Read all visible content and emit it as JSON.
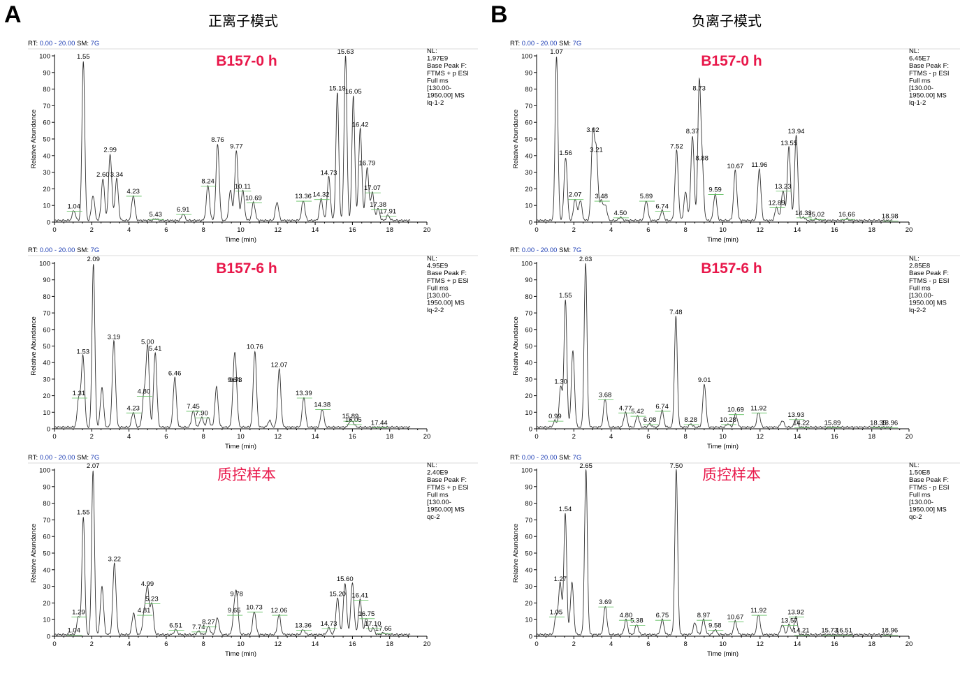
{
  "panels": [
    {
      "letter": "A",
      "mode": "正离子模式"
    },
    {
      "letter": "B",
      "mode": "负离子模式"
    }
  ],
  "axes": {
    "xlabel": "Time (min)",
    "ylabel": "Relative Abundance",
    "x_ticks": [
      0,
      2,
      4,
      6,
      8,
      10,
      12,
      14,
      16,
      18,
      20
    ],
    "y_ticks": [
      0,
      10,
      20,
      30,
      40,
      50,
      60,
      70,
      80,
      90,
      100
    ]
  },
  "colors": {
    "trace": "#333333",
    "sample_title": "#e8174a",
    "rt_value": "#1f3fb5",
    "baseline_mark": "#5fbf5f"
  },
  "chart_data": [
    {
      "type": "line",
      "panel": "A",
      "row": 0,
      "title": "B157-0 h",
      "header": {
        "rt_prefix": "RT:",
        "rt_range": "0.00 - 20.00",
        "sm_prefix": "SM:",
        "sm_value": "7G"
      },
      "info": [
        "NL:",
        "1.97E9",
        "Base Peak F:",
        "FTMS + p ESI",
        "Full ms",
        "[130.00-",
        "1950.00]  MS",
        "lq-1-2"
      ],
      "xlabel": "Time (min)",
      "ylabel": "Relative Abundance",
      "xlim": [
        0,
        20
      ],
      "ylim": [
        0,
        100
      ],
      "baseline": 1,
      "peaks": [
        {
          "x": 1.04,
          "y": 7,
          "label": "1.04"
        },
        {
          "x": 1.55,
          "y": 97,
          "label": "1.55"
        },
        {
          "x": 2.07,
          "y": 16
        },
        {
          "x": 2.6,
          "y": 26,
          "label": "2.60"
        },
        {
          "x": 2.99,
          "y": 41,
          "label": "2.99"
        },
        {
          "x": 3.34,
          "y": 26,
          "label": "3.34"
        },
        {
          "x": 4.23,
          "y": 16,
          "label": "4.23"
        },
        {
          "x": 5.43,
          "y": 2,
          "label": "5.43"
        },
        {
          "x": 6.91,
          "y": 5,
          "label": "6.91"
        },
        {
          "x": 8.24,
          "y": 22,
          "label": "8.24"
        },
        {
          "x": 8.76,
          "y": 47,
          "label": "8.76"
        },
        {
          "x": 9.45,
          "y": 19
        },
        {
          "x": 9.77,
          "y": 43,
          "label": "9.77"
        },
        {
          "x": 10.11,
          "y": 19,
          "label": "10.11"
        },
        {
          "x": 10.69,
          "y": 12,
          "label": "10.69"
        },
        {
          "x": 11.95,
          "y": 12
        },
        {
          "x": 13.36,
          "y": 13,
          "label": "13.36"
        },
        {
          "x": 14.32,
          "y": 14,
          "label": "14.32"
        },
        {
          "x": 14.73,
          "y": 27,
          "label": "14.73"
        },
        {
          "x": 15.19,
          "y": 78,
          "label": "15.19"
        },
        {
          "x": 15.63,
          "y": 100,
          "label": "15.63"
        },
        {
          "x": 16.05,
          "y": 76,
          "label": "16.05"
        },
        {
          "x": 16.42,
          "y": 56,
          "label": "16.42"
        },
        {
          "x": 16.79,
          "y": 33,
          "label": "16.79"
        },
        {
          "x": 17.07,
          "y": 18,
          "label": "17.07"
        },
        {
          "x": 17.38,
          "y": 8,
          "label": "17.38"
        },
        {
          "x": 17.91,
          "y": 4,
          "label": "17.91"
        }
      ]
    },
    {
      "type": "line",
      "panel": "A",
      "row": 1,
      "title": "B157-6 h",
      "header": {
        "rt_prefix": "RT:",
        "rt_range": "0.00 - 20.00",
        "sm_prefix": "SM:",
        "sm_value": "7G"
      },
      "info": [
        "NL:",
        "4.95E9",
        "Base Peak F:",
        "FTMS + p ESI",
        "Full ms",
        "[130.00-",
        "1950.00]  MS",
        "lq-2-2"
      ],
      "xlabel": "Time (min)",
      "ylabel": "Relative Abundance",
      "xlim": [
        0,
        20
      ],
      "ylim": [
        0,
        100
      ],
      "baseline": 1,
      "peaks": [
        {
          "x": 1.31,
          "y": 19,
          "label": "1.31"
        },
        {
          "x": 1.53,
          "y": 44,
          "label": "1.53"
        },
        {
          "x": 2.09,
          "y": 100,
          "label": "2.09"
        },
        {
          "x": 2.55,
          "y": 25
        },
        {
          "x": 3.19,
          "y": 53,
          "label": "3.19"
        },
        {
          "x": 4.23,
          "y": 10,
          "label": "4.23"
        },
        {
          "x": 4.8,
          "y": 20,
          "label": "4.80"
        },
        {
          "x": 5.0,
          "y": 50,
          "label": "5.00"
        },
        {
          "x": 5.41,
          "y": 46,
          "label": "5.41"
        },
        {
          "x": 6.46,
          "y": 31,
          "label": "6.46"
        },
        {
          "x": 7.45,
          "y": 11,
          "label": "7.45"
        },
        {
          "x": 7.9,
          "y": 7,
          "label": "7.90"
        },
        {
          "x": 8.25,
          "y": 7
        },
        {
          "x": 8.7,
          "y": 25
        },
        {
          "x": 9.64,
          "y": 27,
          "label": "9.64"
        },
        {
          "x": 9.73,
          "y": 27,
          "label": "9.73"
        },
        {
          "x": 10.76,
          "y": 47,
          "label": "10.76"
        },
        {
          "x": 11.55,
          "y": 5
        },
        {
          "x": 12.07,
          "y": 36,
          "label": "12.07"
        },
        {
          "x": 13.39,
          "y": 19,
          "label": "13.39"
        },
        {
          "x": 14.38,
          "y": 12,
          "label": "14.38"
        },
        {
          "x": 15.89,
          "y": 5,
          "label": "15.89"
        },
        {
          "x": 16.05,
          "y": 3,
          "label": "16.05"
        },
        {
          "x": 17.44,
          "y": 1,
          "label": "17.44"
        }
      ]
    },
    {
      "type": "line",
      "panel": "A",
      "row": 2,
      "title": "质控样本",
      "header": {
        "rt_prefix": "RT:",
        "rt_range": "0.00 - 20.00",
        "sm_prefix": "SM:",
        "sm_value": "7G"
      },
      "info": [
        "NL:",
        "2.40E9",
        "Base Peak F:",
        "FTMS + p ESI",
        "Full ms",
        "[130.00-",
        "1950.00]  MS",
        "qc-2"
      ],
      "xlabel": "Time (min)",
      "ylabel": "Relative Abundance",
      "xlim": [
        0,
        20
      ],
      "ylim": [
        0,
        100
      ],
      "baseline": 1,
      "peaks": [
        {
          "x": 1.04,
          "y": 1,
          "label": "1.04"
        },
        {
          "x": 1.29,
          "y": 12,
          "label": "1.29"
        },
        {
          "x": 1.55,
          "y": 72,
          "label": "1.55"
        },
        {
          "x": 2.07,
          "y": 100,
          "label": "2.07"
        },
        {
          "x": 2.55,
          "y": 30
        },
        {
          "x": 3.22,
          "y": 44,
          "label": "3.22"
        },
        {
          "x": 4.25,
          "y": 14
        },
        {
          "x": 4.81,
          "y": 13,
          "label": "4.81"
        },
        {
          "x": 4.99,
          "y": 29,
          "label": "4.99"
        },
        {
          "x": 5.23,
          "y": 20,
          "label": "5.23"
        },
        {
          "x": 6.51,
          "y": 4,
          "label": "6.51"
        },
        {
          "x": 7.74,
          "y": 3,
          "label": "7.74"
        },
        {
          "x": 8.27,
          "y": 6,
          "label": "8.27"
        },
        {
          "x": 8.75,
          "y": 11
        },
        {
          "x": 9.65,
          "y": 13,
          "label": "9.65"
        },
        {
          "x": 9.78,
          "y": 23,
          "label": "9.78"
        },
        {
          "x": 10.73,
          "y": 15,
          "label": "10.73"
        },
        {
          "x": 12.06,
          "y": 13,
          "label": "12.06"
        },
        {
          "x": 13.36,
          "y": 4,
          "label": "13.36"
        },
        {
          "x": 14.73,
          "y": 5,
          "label": "14.73"
        },
        {
          "x": 15.2,
          "y": 23,
          "label": "15.20"
        },
        {
          "x": 15.6,
          "y": 32,
          "label": "15.60"
        },
        {
          "x": 16.0,
          "y": 32
        },
        {
          "x": 16.41,
          "y": 22,
          "label": "16.41"
        },
        {
          "x": 16.75,
          "y": 11,
          "label": "16.75"
        },
        {
          "x": 17.1,
          "y": 5,
          "label": "17.10"
        },
        {
          "x": 17.66,
          "y": 2,
          "label": "17.66"
        }
      ]
    },
    {
      "type": "line",
      "panel": "B",
      "row": 0,
      "title": "B157-0 h",
      "header": {
        "rt_prefix": "RT:",
        "rt_range": "0.00 - 20.00",
        "sm_prefix": "SM:",
        "sm_value": "7G"
      },
      "info": [
        "NL:",
        "6.45E7",
        "Base Peak F:",
        "FTMS - p ESI",
        "Full ms",
        "[130.00-",
        "1950.00]  MS",
        "lq-1-2"
      ],
      "xlabel": "Time (min)",
      "ylabel": "Relative Abundance",
      "xlim": [
        0,
        20
      ],
      "ylim": [
        0,
        100
      ],
      "baseline": 1,
      "peaks": [
        {
          "x": 1.07,
          "y": 100,
          "label": "1.07"
        },
        {
          "x": 1.56,
          "y": 39,
          "label": "1.56"
        },
        {
          "x": 2.07,
          "y": 14,
          "label": "2.07"
        },
        {
          "x": 2.35,
          "y": 13
        },
        {
          "x": 3.02,
          "y": 53,
          "label": "3.02"
        },
        {
          "x": 3.21,
          "y": 41,
          "label": "3.21"
        },
        {
          "x": 3.48,
          "y": 13,
          "label": "3.48"
        },
        {
          "x": 3.7,
          "y": 10
        },
        {
          "x": 4.5,
          "y": 3,
          "label": "4.50"
        },
        {
          "x": 5.89,
          "y": 13,
          "label": "5.89"
        },
        {
          "x": 6.74,
          "y": 7,
          "label": "6.74"
        },
        {
          "x": 7.52,
          "y": 43,
          "label": "7.52"
        },
        {
          "x": 8.0,
          "y": 18
        },
        {
          "x": 8.37,
          "y": 52,
          "label": "8.37"
        },
        {
          "x": 8.73,
          "y": 78,
          "label": "8.73"
        },
        {
          "x": 8.88,
          "y": 36,
          "label": "8.88"
        },
        {
          "x": 9.59,
          "y": 17,
          "label": "9.59"
        },
        {
          "x": 10.67,
          "y": 31,
          "label": "10.67"
        },
        {
          "x": 11.96,
          "y": 32,
          "label": "11.96"
        },
        {
          "x": 12.89,
          "y": 9,
          "label": "12.89"
        },
        {
          "x": 13.23,
          "y": 19,
          "label": "13.23"
        },
        {
          "x": 13.55,
          "y": 45,
          "label": "13.55"
        },
        {
          "x": 13.94,
          "y": 52,
          "label": "13.94"
        },
        {
          "x": 14.33,
          "y": 3,
          "label": "14.33"
        },
        {
          "x": 15.02,
          "y": 2,
          "label": "15.02"
        },
        {
          "x": 16.66,
          "y": 2,
          "label": "16.66"
        },
        {
          "x": 18.98,
          "y": 1,
          "label": "18.98"
        }
      ]
    },
    {
      "type": "line",
      "panel": "B",
      "row": 1,
      "title": "B157-6 h",
      "header": {
        "rt_prefix": "RT:",
        "rt_range": "0.00 - 20.00",
        "sm_prefix": "SM:",
        "sm_value": "7G"
      },
      "info": [
        "NL:",
        "2.85E8",
        "Base Peak F:",
        "FTMS - p ESI",
        "Full ms",
        "[130.00-",
        "1950.00]  MS",
        "lq-2-2"
      ],
      "xlabel": "Time (min)",
      "ylabel": "Relative Abundance",
      "xlim": [
        0,
        20
      ],
      "ylim": [
        0,
        100
      ],
      "baseline": 1,
      "peaks": [
        {
          "x": 0.99,
          "y": 5,
          "label": "0.99"
        },
        {
          "x": 1.3,
          "y": 26,
          "label": "1.30"
        },
        {
          "x": 1.55,
          "y": 78,
          "label": "1.55"
        },
        {
          "x": 1.95,
          "y": 47
        },
        {
          "x": 2.63,
          "y": 100,
          "label": "2.63"
        },
        {
          "x": 3.68,
          "y": 18,
          "label": "3.68"
        },
        {
          "x": 4.77,
          "y": 10,
          "label": "4.77"
        },
        {
          "x": 5.42,
          "y": 8,
          "label": "5.42"
        },
        {
          "x": 6.08,
          "y": 3,
          "label": "6.08"
        },
        {
          "x": 6.74,
          "y": 11,
          "label": "6.74"
        },
        {
          "x": 7.48,
          "y": 68,
          "label": "7.48"
        },
        {
          "x": 8.28,
          "y": 3,
          "label": "8.28"
        },
        {
          "x": 9.01,
          "y": 27,
          "label": "9.01"
        },
        {
          "x": 10.28,
          "y": 3,
          "label": "10.28"
        },
        {
          "x": 10.69,
          "y": 9,
          "label": "10.69"
        },
        {
          "x": 11.92,
          "y": 10,
          "label": "11.92"
        },
        {
          "x": 13.2,
          "y": 5
        },
        {
          "x": 13.93,
          "y": 6,
          "label": "13.93"
        },
        {
          "x": 14.22,
          "y": 1,
          "label": "14.22"
        },
        {
          "x": 15.89,
          "y": 1,
          "label": "15.89"
        },
        {
          "x": 18.35,
          "y": 1,
          "label": "18.35"
        },
        {
          "x": 18.96,
          "y": 1,
          "label": "18.96"
        }
      ]
    },
    {
      "type": "line",
      "panel": "B",
      "row": 2,
      "title": "质控样本",
      "header": {
        "rt_prefix": "RT:",
        "rt_range": "0.00 - 20.00",
        "sm_prefix": "SM:",
        "sm_value": "7G"
      },
      "info": [
        "NL:",
        "1.50E8",
        "Base Peak F:",
        "FTMS - p ESI",
        "Full ms",
        "[130.00-",
        "1950.00]  MS",
        "qc-2"
      ],
      "xlabel": "Time (min)",
      "ylabel": "Relative Abundance",
      "xlim": [
        0,
        20
      ],
      "ylim": [
        0,
        100
      ],
      "baseline": 1,
      "peaks": [
        {
          "x": 1.05,
          "y": 12,
          "label": "1.05"
        },
        {
          "x": 1.27,
          "y": 32,
          "label": "1.27"
        },
        {
          "x": 1.54,
          "y": 74,
          "label": "1.54"
        },
        {
          "x": 1.9,
          "y": 32
        },
        {
          "x": 2.65,
          "y": 100,
          "label": "2.65"
        },
        {
          "x": 3.69,
          "y": 18,
          "label": "3.69"
        },
        {
          "x": 4.8,
          "y": 10,
          "label": "4.80"
        },
        {
          "x": 5.38,
          "y": 7,
          "label": "5.38"
        },
        {
          "x": 6.75,
          "y": 10,
          "label": "6.75"
        },
        {
          "x": 7.5,
          "y": 100,
          "label": "7.50"
        },
        {
          "x": 8.5,
          "y": 8
        },
        {
          "x": 8.97,
          "y": 10,
          "label": "8.97"
        },
        {
          "x": 9.58,
          "y": 4,
          "label": "9.58"
        },
        {
          "x": 10.67,
          "y": 9,
          "label": "10.67"
        },
        {
          "x": 11.92,
          "y": 13,
          "label": "11.92"
        },
        {
          "x": 13.2,
          "y": 7
        },
        {
          "x": 13.57,
          "y": 7,
          "label": "13.57"
        },
        {
          "x": 13.92,
          "y": 12,
          "label": "13.92"
        },
        {
          "x": 14.21,
          "y": 1,
          "label": "14.21"
        },
        {
          "x": 15.73,
          "y": 1,
          "label": "15.73"
        },
        {
          "x": 16.51,
          "y": 1,
          "label": "16.51"
        },
        {
          "x": 18.96,
          "y": 1,
          "label": "18.96"
        }
      ]
    }
  ]
}
